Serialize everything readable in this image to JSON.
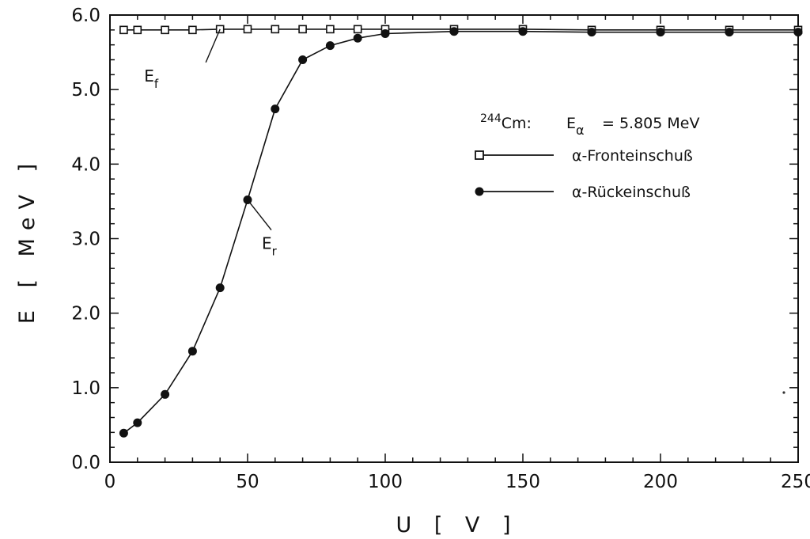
{
  "chart_data": {
    "type": "line",
    "xlabel": "U   [ V ]",
    "ylabel": "E  [ MeV ]",
    "xlim": [
      0,
      250
    ],
    "ylim": [
      0.0,
      6.0
    ],
    "x_ticks": [
      "0",
      "50",
      "100",
      "150",
      "200",
      "250"
    ],
    "y_ticks": [
      "0.0",
      "1.0",
      "2.0",
      "3.0",
      "4.0",
      "5.0",
      "6.0"
    ],
    "grid": false,
    "legend_position": "right",
    "legend_header": {
      "isotope_mass": "244",
      "isotope_symbol": "Cm:",
      "energy_symbol": "E",
      "energy_subscript": "α",
      "energy_value": "= 5.805  MeV"
    },
    "series": [
      {
        "name": "α-Fronteinschuß",
        "marker": "open-square",
        "color": "#111111",
        "points": [
          [
            5,
            5.8
          ],
          [
            10,
            5.8
          ],
          [
            20,
            5.8
          ],
          [
            30,
            5.8
          ],
          [
            40,
            5.81
          ],
          [
            50,
            5.81
          ],
          [
            60,
            5.81
          ],
          [
            70,
            5.81
          ],
          [
            80,
            5.81
          ],
          [
            90,
            5.81
          ],
          [
            100,
            5.81
          ],
          [
            125,
            5.81
          ],
          [
            150,
            5.81
          ],
          [
            175,
            5.8
          ],
          [
            200,
            5.8
          ],
          [
            225,
            5.8
          ],
          [
            250,
            5.8
          ]
        ]
      },
      {
        "name": "α-Rückeinschuß",
        "marker": "filled-circle",
        "color": "#111111",
        "points": [
          [
            5,
            0.39
          ],
          [
            10,
            0.53
          ],
          [
            20,
            0.91
          ],
          [
            30,
            1.49
          ],
          [
            40,
            2.34
          ],
          [
            50,
            3.52
          ],
          [
            60,
            4.74
          ],
          [
            70,
            5.4
          ],
          [
            80,
            5.59
          ],
          [
            90,
            5.69
          ],
          [
            100,
            5.75
          ],
          [
            125,
            5.78
          ],
          [
            150,
            5.78
          ],
          [
            175,
            5.77
          ],
          [
            200,
            5.77
          ],
          [
            225,
            5.77
          ],
          [
            250,
            5.77
          ]
        ]
      }
    ],
    "annotations": [
      {
        "label": "E",
        "subscript": "f",
        "series": 0,
        "point_x": 40
      },
      {
        "label": "E",
        "subscript": "r",
        "series": 1,
        "point_x": 50
      }
    ]
  }
}
